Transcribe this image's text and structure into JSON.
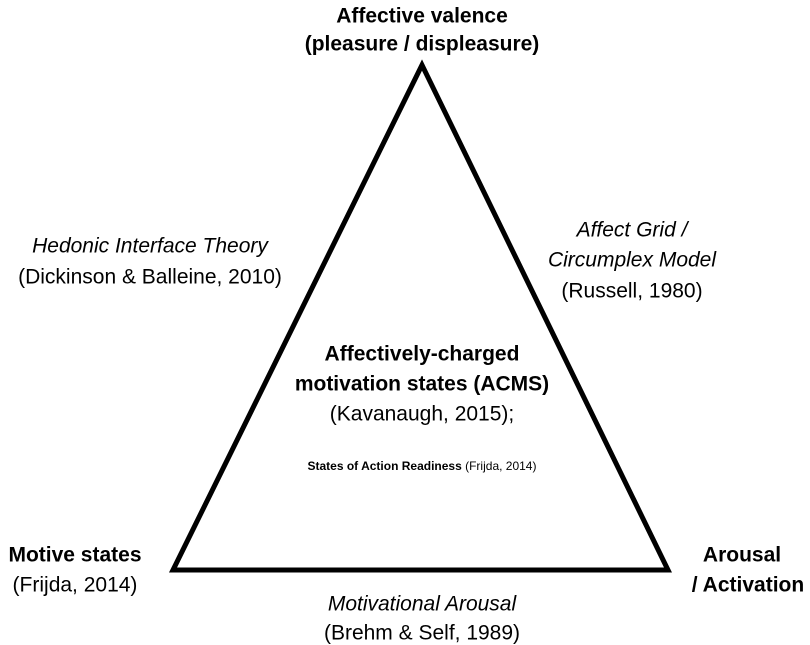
{
  "vertices": {
    "top": {
      "lines": [
        "Affective valence",
        "(pleasure / displeasure)"
      ]
    },
    "bottom_left": {
      "lines": [
        "Motive states",
        "(Frijda, 2014)"
      ]
    },
    "bottom_right": {
      "lines": [
        "Arousal",
        "/ Activation"
      ]
    }
  },
  "edges": {
    "left": {
      "lines": [
        "Hedonic Interface Theory",
        "(Dickinson & Balleine, 2010)"
      ]
    },
    "right": {
      "lines": [
        "Affect Grid /",
        "Circumplex Model",
        "(Russell, 1980)"
      ]
    },
    "bottom": {
      "lines": [
        "Motivational Arousal",
        "(Brehm & Self, 1989)"
      ]
    }
  },
  "center": {
    "lines": [
      "Affectively-charged",
      "motivation states (ACMS)",
      "(Kavanaugh, 2015);"
    ],
    "note": {
      "term": "States of Action Readiness",
      "citation": "(Frijda, 2014)"
    }
  }
}
